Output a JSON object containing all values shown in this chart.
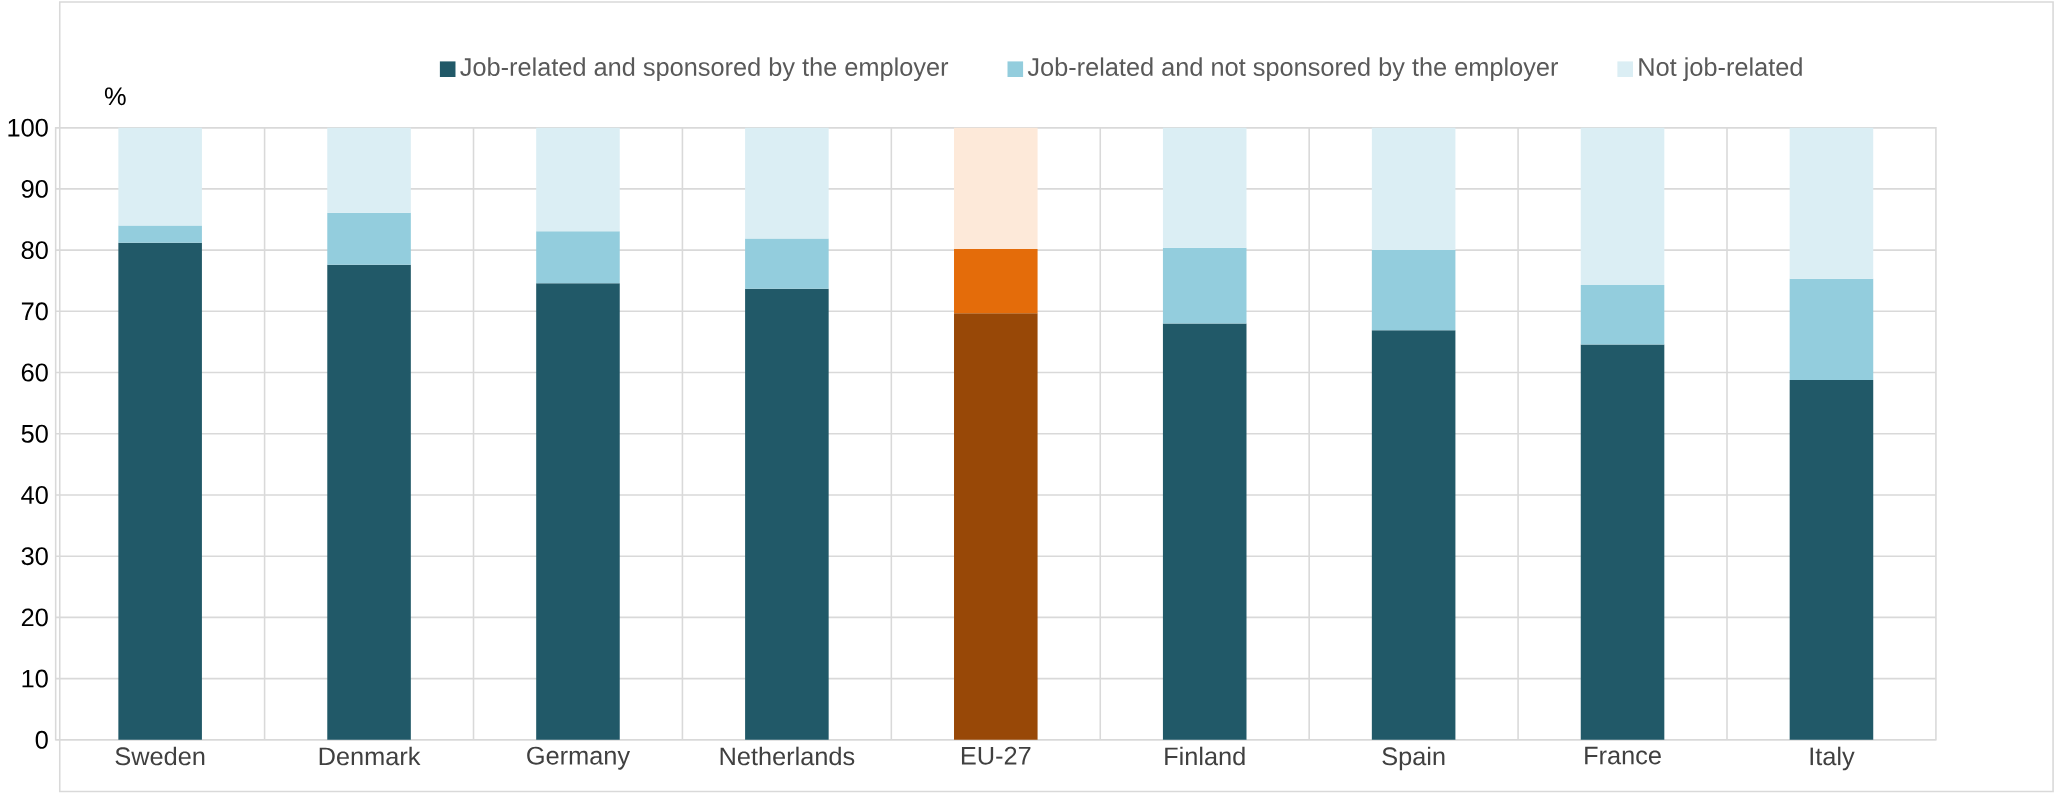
{
  "chart_data": {
    "type": "bar",
    "stacked": true,
    "ylabel": "%",
    "categories": [
      "Sweden",
      "Denmark",
      "Germany",
      "Netherlands",
      "EU-27",
      "Finland",
      "Spain",
      "France",
      "Italy"
    ],
    "series": [
      {
        "name": "Job-related and sponsored by the employer",
        "color": "#215968",
        "colors": [
          "#215968",
          "#215968",
          "#215968",
          "#215968",
          "#984807",
          "#215968",
          "#215968",
          "#215968",
          "#215968"
        ],
        "values": [
          81.2,
          77.6,
          74.6,
          73.7,
          69.7,
          68.0,
          66.9,
          64.6,
          58.8
        ]
      },
      {
        "name": "Job-related and not sponsored by the employer",
        "color": "#93cddd",
        "colors": [
          "#93cddd",
          "#93cddd",
          "#93cddd",
          "#93cddd",
          "#e46c0a",
          "#93cddd",
          "#93cddd",
          "#93cddd",
          "#93cddd"
        ],
        "values": [
          2.8,
          8.5,
          8.5,
          8.2,
          10.5,
          12.4,
          13.1,
          9.7,
          16.5
        ]
      },
      {
        "name": "Not job-related",
        "color": "#dbeef4",
        "colors": [
          "#dbeef4",
          "#dbeef4",
          "#dbeef4",
          "#dbeef4",
          "#fde9d9",
          "#dbeef4",
          "#dbeef4",
          "#dbeef4",
          "#dbeef4"
        ],
        "values": [
          16.0,
          13.9,
          16.9,
          18.1,
          19.8,
          19.6,
          20.0,
          25.7,
          24.7
        ]
      }
    ],
    "ylim": [
      0,
      100
    ],
    "yticks": [
      0,
      10,
      20,
      30,
      40,
      50,
      60,
      70,
      80,
      90,
      100
    ],
    "grid": true,
    "legend": "top"
  }
}
